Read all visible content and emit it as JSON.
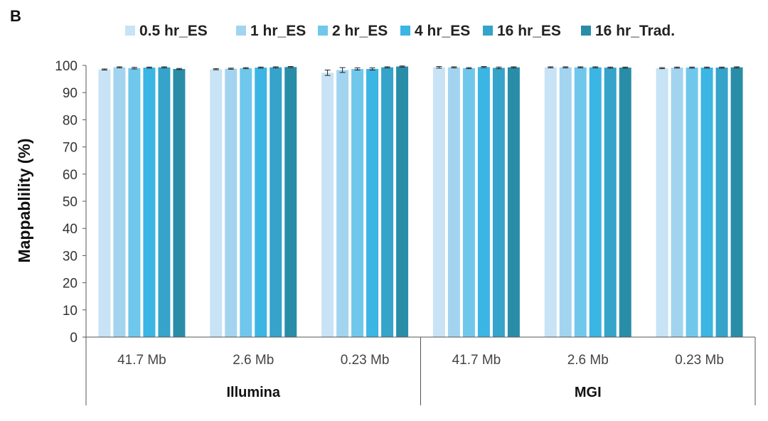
{
  "panel_label": "B",
  "chart_data": {
    "type": "bar",
    "title": "",
    "xlabel": "",
    "ylabel": "Mappablility (%)",
    "ylim": [
      0,
      100
    ],
    "yticks": [
      0,
      10,
      20,
      30,
      40,
      50,
      60,
      70,
      80,
      90,
      100
    ],
    "legend_position": "top",
    "categories": [
      "41.7 Mb",
      "2.6 Mb",
      "0.23 Mb",
      "41.7 Mb",
      "2.6 Mb",
      "0.23 Mb"
    ],
    "groups": [
      {
        "name": "Illumina",
        "categories": [
          "41.7 Mb",
          "2.6 Mb",
          "0.23 Mb"
        ]
      },
      {
        "name": "MGI",
        "categories": [
          "41.7 Mb",
          "2.6 Mb",
          "0.23 Mb"
        ]
      }
    ],
    "series": [
      {
        "name": "0.5 hr_ES",
        "color": "#c7e3f5",
        "values": [
          98.5,
          98.6,
          97.3,
          99.3,
          99.3,
          99.0
        ],
        "errors": [
          0.2,
          0.2,
          1.0,
          0.3,
          0.2,
          0.2
        ]
      },
      {
        "name": "1 hr_ES",
        "color": "#a2d4f0",
        "values": [
          99.3,
          98.8,
          98.3,
          99.3,
          99.3,
          99.2
        ],
        "errors": [
          0.2,
          0.2,
          0.9,
          0.2,
          0.2,
          0.2
        ]
      },
      {
        "name": "2 hr_ES",
        "color": "#70c7ec",
        "values": [
          99.0,
          99.0,
          98.7,
          99.0,
          99.3,
          99.2
        ],
        "errors": [
          0.3,
          0.2,
          0.4,
          0.2,
          0.2,
          0.2
        ]
      },
      {
        "name": "4 hr_ES",
        "color": "#3bb5e3",
        "values": [
          99.2,
          99.2,
          98.7,
          99.4,
          99.3,
          99.2
        ],
        "errors": [
          0.2,
          0.2,
          0.4,
          0.2,
          0.2,
          0.2
        ]
      },
      {
        "name": "16 hr_ES",
        "color": "#35a3ca",
        "values": [
          99.3,
          99.3,
          99.3,
          99.1,
          99.2,
          99.2
        ],
        "errors": [
          0.2,
          0.2,
          0.2,
          0.3,
          0.2,
          0.2
        ]
      },
      {
        "name": "16 hr_Trad.",
        "color": "#2a8da8",
        "values": [
          98.7,
          99.4,
          99.6,
          99.3,
          99.2,
          99.3
        ],
        "errors": [
          0.2,
          0.2,
          0.2,
          0.2,
          0.2,
          0.2
        ]
      }
    ]
  }
}
